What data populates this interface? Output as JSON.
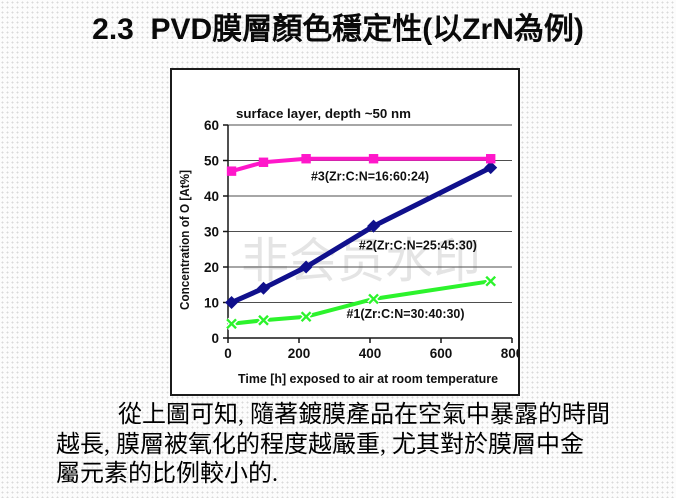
{
  "slide": {
    "title": "2.3  PVD膜層顏色穩定性(以ZrN為例)",
    "watermark": "非会员水印",
    "paragraph_lines": [
      "從上圖可知, 隨著鍍膜產品在空氣中暴露的時間",
      "越長, 膜層被氧化的程度越嚴重, 尤其對於膜層中金",
      "屬元素的比例較小的."
    ]
  },
  "chart_data": {
    "type": "line",
    "title": "surface layer, depth ~50 nm",
    "xlabel": "Time [h] exposed to air at room temperature",
    "ylabel": "Concentration of O [At%]",
    "xlim": [
      0,
      800
    ],
    "ylim": [
      0,
      60
    ],
    "xticks": [
      0,
      200,
      400,
      600,
      800
    ],
    "yticks": [
      0,
      10,
      20,
      30,
      40,
      50,
      60
    ],
    "grid": "horizontal",
    "legend": "inline-labels",
    "x": [
      10,
      100,
      220,
      410,
      740
    ],
    "series": [
      {
        "name": "#3(Zr:C:N=16:60:24)",
        "color": "#ff17ca",
        "marker": "square",
        "values": [
          47,
          49.5,
          50.5,
          50.5,
          50.5
        ],
        "label_x": 400,
        "label_y": 45.5
      },
      {
        "name": "#2(Zr:C:N=25:45:30)",
        "color": "#10108c",
        "marker": "diamond",
        "values": [
          10,
          14,
          20,
          31.5,
          48
        ],
        "label_x": 535,
        "label_y": 26
      },
      {
        "name": "#1(Zr:C:N=30:40:30)",
        "color": "#2cf32c",
        "marker": "x",
        "values": [
          4,
          5,
          6,
          11,
          16
        ],
        "label_x": 500,
        "label_y": 6.8
      }
    ]
  }
}
